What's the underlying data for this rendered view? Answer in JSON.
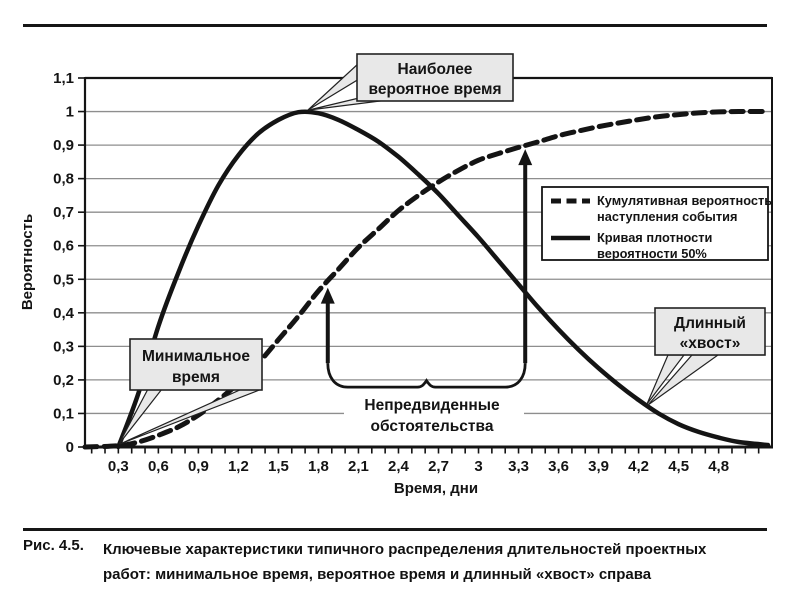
{
  "figure": {
    "caption_label": "Рис. 4.5.",
    "caption_lines": [
      "Ключевые характеристики типичного распределения длительностей проектных",
      "работ: минимальное время, вероятное время и длинный «хвост» справа"
    ]
  },
  "chart_data": {
    "type": "line",
    "title": "",
    "xlabel": "Время, дни",
    "ylabel": "Вероятность",
    "xlim": [
      0.05,
      5.2
    ],
    "ylim": [
      0,
      1.1
    ],
    "grid": "horizontal",
    "x_ticks": {
      "values": [
        0.3,
        0.6,
        0.9,
        1.2,
        1.5,
        1.8,
        2.1,
        2.4,
        2.7,
        3.0,
        3.3,
        3.6,
        3.9,
        4.2,
        4.5,
        4.8
      ],
      "labels": [
        "0,3",
        "0,6",
        "0,9",
        "1,2",
        "1,5",
        "1,8",
        "2,1",
        "2,4",
        "2,7",
        "3",
        "3,3",
        "3,6",
        "3,9",
        "4,2",
        "4,5",
        "4,8"
      ],
      "minor_step": 0.1,
      "minor_range": [
        0.1,
        5.1
      ]
    },
    "y_ticks": {
      "values": [
        0,
        0.1,
        0.2,
        0.3,
        0.4,
        0.5,
        0.6,
        0.7,
        0.8,
        0.9,
        1.0,
        1.1
      ],
      "labels": [
        "0",
        "0,1",
        "0,2",
        "0,3",
        "0,4",
        "0,5",
        "0,6",
        "0,7",
        "0,8",
        "0,9",
        "1",
        "1,1"
      ]
    },
    "legend": {
      "position": "inside-right",
      "entries": [
        {
          "name": "Кумулятивная вероятность наступления события",
          "line_style": "dashed",
          "lines": [
            "Кумулятивная вероятность",
            "наступления события"
          ]
        },
        {
          "name": "Кривая плотности вероятности 50%",
          "line_style": "solid",
          "lines": [
            "Кривая плотности",
            "вероятности 50%"
          ]
        }
      ]
    },
    "series": [
      {
        "name": "Кумулятивная вероятность наступления события",
        "style": "dashed",
        "points": [
          [
            0.05,
            0
          ],
          [
            0.3,
            0.004
          ],
          [
            0.45,
            0.015
          ],
          [
            0.6,
            0.035
          ],
          [
            0.75,
            0.06
          ],
          [
            0.9,
            0.095
          ],
          [
            1.05,
            0.14
          ],
          [
            1.2,
            0.19
          ],
          [
            1.35,
            0.25
          ],
          [
            1.5,
            0.32
          ],
          [
            1.65,
            0.39
          ],
          [
            1.8,
            0.465
          ],
          [
            1.95,
            0.53
          ],
          [
            2.1,
            0.595
          ],
          [
            2.25,
            0.65
          ],
          [
            2.4,
            0.705
          ],
          [
            2.55,
            0.75
          ],
          [
            2.7,
            0.79
          ],
          [
            2.85,
            0.825
          ],
          [
            3.0,
            0.855
          ],
          [
            3.15,
            0.875
          ],
          [
            3.3,
            0.893
          ],
          [
            3.45,
            0.91
          ],
          [
            3.6,
            0.928
          ],
          [
            3.75,
            0.942
          ],
          [
            3.9,
            0.955
          ],
          [
            4.05,
            0.966
          ],
          [
            4.2,
            0.976
          ],
          [
            4.35,
            0.985
          ],
          [
            4.5,
            0.991
          ],
          [
            4.65,
            0.996
          ],
          [
            4.8,
            0.999
          ],
          [
            4.95,
            1.0
          ],
          [
            5.17,
            1.0
          ]
        ]
      },
      {
        "name": "Кривая плотности вероятности 50%",
        "style": "solid",
        "points": [
          [
            0.3,
            0
          ],
          [
            0.45,
            0.16
          ],
          [
            0.6,
            0.36
          ],
          [
            0.75,
            0.52
          ],
          [
            0.9,
            0.66
          ],
          [
            1.05,
            0.78
          ],
          [
            1.2,
            0.87
          ],
          [
            1.35,
            0.935
          ],
          [
            1.5,
            0.975
          ],
          [
            1.65,
            0.998
          ],
          [
            1.8,
            0.995
          ],
          [
            1.95,
            0.975
          ],
          [
            2.1,
            0.945
          ],
          [
            2.25,
            0.91
          ],
          [
            2.4,
            0.865
          ],
          [
            2.55,
            0.812
          ],
          [
            2.7,
            0.755
          ],
          [
            2.85,
            0.69
          ],
          [
            3.0,
            0.625
          ],
          [
            3.15,
            0.555
          ],
          [
            3.3,
            0.485
          ],
          [
            3.45,
            0.415
          ],
          [
            3.6,
            0.35
          ],
          [
            3.75,
            0.29
          ],
          [
            3.9,
            0.235
          ],
          [
            4.05,
            0.185
          ],
          [
            4.2,
            0.14
          ],
          [
            4.35,
            0.1
          ],
          [
            4.5,
            0.068
          ],
          [
            4.65,
            0.045
          ],
          [
            4.8,
            0.028
          ],
          [
            4.95,
            0.015
          ],
          [
            5.17,
            0.006
          ]
        ]
      }
    ],
    "annotations": {
      "callouts": [
        {
          "text": [
            "Наиболее",
            "вероятное время"
          ],
          "points_to": {
            "x": 1.68,
            "y": 1.0
          }
        },
        {
          "text": [
            "Минимальное",
            "время"
          ],
          "points_to": {
            "x": 0.3,
            "y": 0
          }
        },
        {
          "text": [
            "Длинный",
            "«хвост»"
          ],
          "points_to": {
            "x": 4.26,
            "y": 0.125
          }
        }
      ],
      "contingency": {
        "text": [
          "Непредвиденные",
          "обстоятельства"
        ],
        "base_y": 0.25,
        "arrows": [
          {
            "x": 1.87,
            "y_tip": 0.475
          },
          {
            "x": 3.35,
            "y_tip": 0.888
          }
        ]
      }
    }
  }
}
